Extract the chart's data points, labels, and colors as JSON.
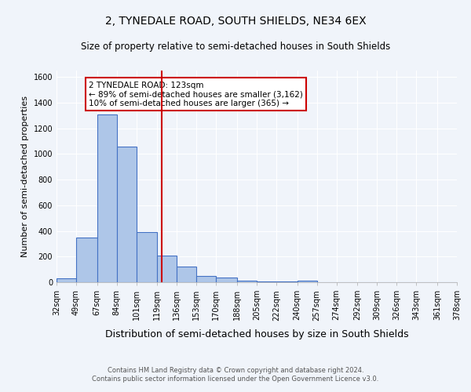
{
  "title": "2, TYNEDALE ROAD, SOUTH SHIELDS, NE34 6EX",
  "subtitle": "Size of property relative to semi-detached houses in South Shields",
  "xlabel": "Distribution of semi-detached houses by size in South Shields",
  "ylabel": "Number of semi-detached properties",
  "footer_line1": "Contains HM Land Registry data © Crown copyright and database right 2024.",
  "footer_line2": "Contains public sector information licensed under the Open Government Licence v3.0.",
  "bin_labels": [
    "32sqm",
    "49sqm",
    "67sqm",
    "84sqm",
    "101sqm",
    "119sqm",
    "136sqm",
    "153sqm",
    "170sqm",
    "188sqm",
    "205sqm",
    "222sqm",
    "240sqm",
    "257sqm",
    "274sqm",
    "292sqm",
    "309sqm",
    "326sqm",
    "343sqm",
    "361sqm",
    "378sqm"
  ],
  "bar_values": [
    30,
    350,
    1310,
    1055,
    390,
    205,
    120,
    50,
    35,
    15,
    5,
    5,
    15,
    0,
    0,
    0,
    0,
    0,
    0,
    0
  ],
  "bin_edges": [
    32,
    49,
    67,
    84,
    101,
    119,
    136,
    153,
    170,
    188,
    205,
    222,
    240,
    257,
    274,
    292,
    309,
    326,
    343,
    361,
    378
  ],
  "property_line_x": 123,
  "annotation_text_line1": "2 TYNEDALE ROAD: 123sqm",
  "annotation_text_line2": "← 89% of semi-detached houses are smaller (3,162)",
  "annotation_text_line3": "10% of semi-detached houses are larger (365) →",
  "bar_color": "#aec6e8",
  "bar_edge_color": "#4472c4",
  "vline_color": "#cc0000",
  "annotation_box_edge_color": "#cc0000",
  "background_color": "#f0f4fa",
  "plot_bg_color": "#f0f4fa",
  "ylim": [
    0,
    1650
  ],
  "yticks": [
    0,
    200,
    400,
    600,
    800,
    1000,
    1200,
    1400,
    1600
  ],
  "title_fontsize": 10,
  "subtitle_fontsize": 8.5,
  "ylabel_fontsize": 8,
  "xlabel_fontsize": 9,
  "tick_fontsize": 7,
  "footer_fontsize": 6
}
